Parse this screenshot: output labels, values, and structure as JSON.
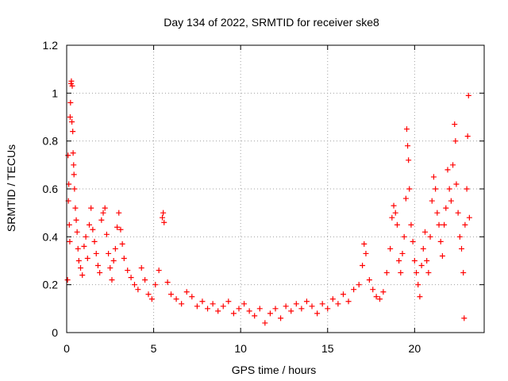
{
  "chart_data": {
    "type": "scatter",
    "title": "Day 134 of 2022, SRMTID for receiver ske8",
    "xlabel": "GPS time / hours",
    "ylabel": "SRMTID / TECUs",
    "xlim": [
      0,
      24
    ],
    "ylim": [
      0,
      1.2
    ],
    "xticks": [
      0,
      5,
      10,
      15,
      20
    ],
    "yticks": [
      0,
      0.2,
      0.4,
      0.6,
      0.8,
      1,
      1.2
    ],
    "xtick_labels": [
      "0",
      "5",
      "10",
      "15",
      "20"
    ],
    "ytick_labels": [
      "0",
      "0.2",
      "0.4",
      "0.6",
      "0.8",
      "1",
      "1.2"
    ],
    "grid": true,
    "marker": "+",
    "color": "#ff0000",
    "series": [
      {
        "name": "ske8",
        "points": [
          [
            0.05,
            0.22
          ],
          [
            0.08,
            0.74
          ],
          [
            0.1,
            0.55
          ],
          [
            0.12,
            0.62
          ],
          [
            0.15,
            0.45
          ],
          [
            0.18,
            0.38
          ],
          [
            0.2,
            0.9
          ],
          [
            0.22,
            0.96
          ],
          [
            0.25,
            1.04
          ],
          [
            0.27,
            1.05
          ],
          [
            0.3,
            0.88
          ],
          [
            0.32,
            1.03
          ],
          [
            0.35,
            0.84
          ],
          [
            0.37,
            0.75
          ],
          [
            0.4,
            0.7
          ],
          [
            0.42,
            0.66
          ],
          [
            0.45,
            0.6
          ],
          [
            0.5,
            0.52
          ],
          [
            0.55,
            0.47
          ],
          [
            0.6,
            0.42
          ],
          [
            0.65,
            0.35
          ],
          [
            0.7,
            0.3
          ],
          [
            0.8,
            0.27
          ],
          [
            0.9,
            0.24
          ],
          [
            1.0,
            0.36
          ],
          [
            1.1,
            0.4
          ],
          [
            1.2,
            0.31
          ],
          [
            1.3,
            0.45
          ],
          [
            1.4,
            0.52
          ],
          [
            1.5,
            0.43
          ],
          [
            1.6,
            0.38
          ],
          [
            1.7,
            0.33
          ],
          [
            1.8,
            0.28
          ],
          [
            1.9,
            0.25
          ],
          [
            2.0,
            0.47
          ],
          [
            2.1,
            0.5
          ],
          [
            2.2,
            0.52
          ],
          [
            2.3,
            0.41
          ],
          [
            2.4,
            0.33
          ],
          [
            2.5,
            0.27
          ],
          [
            2.6,
            0.22
          ],
          [
            2.7,
            0.3
          ],
          [
            2.8,
            0.35
          ],
          [
            2.9,
            0.44
          ],
          [
            3.0,
            0.5
          ],
          [
            3.1,
            0.43
          ],
          [
            3.2,
            0.37
          ],
          [
            3.3,
            0.31
          ],
          [
            3.5,
            0.26
          ],
          [
            3.7,
            0.23
          ],
          [
            3.9,
            0.2
          ],
          [
            4.1,
            0.18
          ],
          [
            4.3,
            0.27
          ],
          [
            4.5,
            0.22
          ],
          [
            4.7,
            0.16
          ],
          [
            4.9,
            0.14
          ],
          [
            5.1,
            0.2
          ],
          [
            5.3,
            0.26
          ],
          [
            5.5,
            0.48
          ],
          [
            5.55,
            0.5
          ],
          [
            5.6,
            0.46
          ],
          [
            5.8,
            0.21
          ],
          [
            6.0,
            0.16
          ],
          [
            6.3,
            0.14
          ],
          [
            6.6,
            0.12
          ],
          [
            6.9,
            0.17
          ],
          [
            7.2,
            0.15
          ],
          [
            7.5,
            0.11
          ],
          [
            7.8,
            0.13
          ],
          [
            8.1,
            0.1
          ],
          [
            8.4,
            0.12
          ],
          [
            8.7,
            0.09
          ],
          [
            9.0,
            0.11
          ],
          [
            9.3,
            0.13
          ],
          [
            9.6,
            0.08
          ],
          [
            9.9,
            0.1
          ],
          [
            10.2,
            0.12
          ],
          [
            10.5,
            0.09
          ],
          [
            10.8,
            0.07
          ],
          [
            11.1,
            0.1
          ],
          [
            11.4,
            0.04
          ],
          [
            11.7,
            0.08
          ],
          [
            12.0,
            0.1
          ],
          [
            12.3,
            0.06
          ],
          [
            12.6,
            0.11
          ],
          [
            12.9,
            0.09
          ],
          [
            13.2,
            0.12
          ],
          [
            13.5,
            0.1
          ],
          [
            13.8,
            0.13
          ],
          [
            14.1,
            0.11
          ],
          [
            14.4,
            0.08
          ],
          [
            14.7,
            0.12
          ],
          [
            15.0,
            0.1
          ],
          [
            15.3,
            0.14
          ],
          [
            15.6,
            0.12
          ],
          [
            15.9,
            0.16
          ],
          [
            16.2,
            0.13
          ],
          [
            16.5,
            0.18
          ],
          [
            16.8,
            0.2
          ],
          [
            17.0,
            0.28
          ],
          [
            17.1,
            0.37
          ],
          [
            17.2,
            0.33
          ],
          [
            17.4,
            0.22
          ],
          [
            17.6,
            0.18
          ],
          [
            17.8,
            0.15
          ],
          [
            18.0,
            0.14
          ],
          [
            18.2,
            0.17
          ],
          [
            18.4,
            0.25
          ],
          [
            18.6,
            0.35
          ],
          [
            18.7,
            0.48
          ],
          [
            18.8,
            0.53
          ],
          [
            18.9,
            0.5
          ],
          [
            19.0,
            0.45
          ],
          [
            19.1,
            0.3
          ],
          [
            19.2,
            0.25
          ],
          [
            19.3,
            0.33
          ],
          [
            19.4,
            0.4
          ],
          [
            19.5,
            0.56
          ],
          [
            19.55,
            0.85
          ],
          [
            19.6,
            0.78
          ],
          [
            19.65,
            0.72
          ],
          [
            19.7,
            0.6
          ],
          [
            19.8,
            0.45
          ],
          [
            19.9,
            0.38
          ],
          [
            20.0,
            0.3
          ],
          [
            20.1,
            0.25
          ],
          [
            20.2,
            0.2
          ],
          [
            20.3,
            0.15
          ],
          [
            20.4,
            0.28
          ],
          [
            20.5,
            0.35
          ],
          [
            20.6,
            0.42
          ],
          [
            20.7,
            0.3
          ],
          [
            20.8,
            0.25
          ],
          [
            20.9,
            0.4
          ],
          [
            21.0,
            0.55
          ],
          [
            21.1,
            0.65
          ],
          [
            21.2,
            0.6
          ],
          [
            21.3,
            0.5
          ],
          [
            21.4,
            0.45
          ],
          [
            21.5,
            0.38
          ],
          [
            21.6,
            0.32
          ],
          [
            21.7,
            0.45
          ],
          [
            21.8,
            0.52
          ],
          [
            21.9,
            0.68
          ],
          [
            22.0,
            0.6
          ],
          [
            22.1,
            0.55
          ],
          [
            22.2,
            0.7
          ],
          [
            22.3,
            0.87
          ],
          [
            22.35,
            0.8
          ],
          [
            22.4,
            0.62
          ],
          [
            22.5,
            0.5
          ],
          [
            22.6,
            0.4
          ],
          [
            22.7,
            0.35
          ],
          [
            22.8,
            0.25
          ],
          [
            22.85,
            0.06
          ],
          [
            22.9,
            0.45
          ],
          [
            23.0,
            0.6
          ],
          [
            23.05,
            0.82
          ],
          [
            23.1,
            0.99
          ],
          [
            23.15,
            0.48
          ]
        ]
      }
    ]
  }
}
